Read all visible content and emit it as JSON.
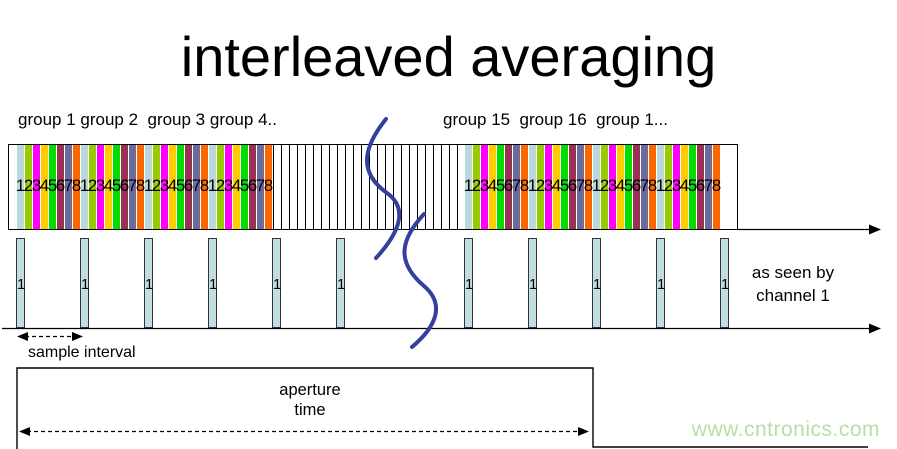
{
  "title": "interleaved averaging",
  "group_labels": {
    "left": "group 1 group 2  group 3 group 4..",
    "right": "group 15  group 16  group 1..."
  },
  "strip": {
    "slot_numbers": [
      "1",
      "2",
      "3",
      "4",
      "5",
      "6",
      "7",
      "8"
    ],
    "palette": [
      "#b9d8de",
      "#99cc00",
      "#ff00ff",
      "#ffcc00",
      "#00dd00",
      "#993355",
      "#6b6b9e",
      "#ff6600"
    ],
    "regions": [
      {
        "type": "white",
        "slots": 1
      },
      {
        "type": "colored_groups",
        "groups": 4
      },
      {
        "type": "empty",
        "slots": 24
      },
      {
        "type": "colored_groups",
        "groups": 4
      },
      {
        "type": "white",
        "slots": 2
      }
    ]
  },
  "channel1": {
    "bar_label": "1",
    "bar_positions": [
      16,
      80,
      144,
      208,
      272,
      336,
      464,
      528,
      592,
      656,
      720
    ],
    "bar_color": "#c2dee5",
    "note_line1": "as seen by",
    "note_line2": "channel 1"
  },
  "labels": {
    "sample_interval": "sample interval",
    "aperture_line1": "aperture",
    "aperture_line2": "time"
  },
  "watermark": {
    "text": "www.cntronics.com",
    "color": "#b7dea6"
  },
  "colors": {
    "break_line": "#353f9e",
    "outline": "#000000"
  }
}
